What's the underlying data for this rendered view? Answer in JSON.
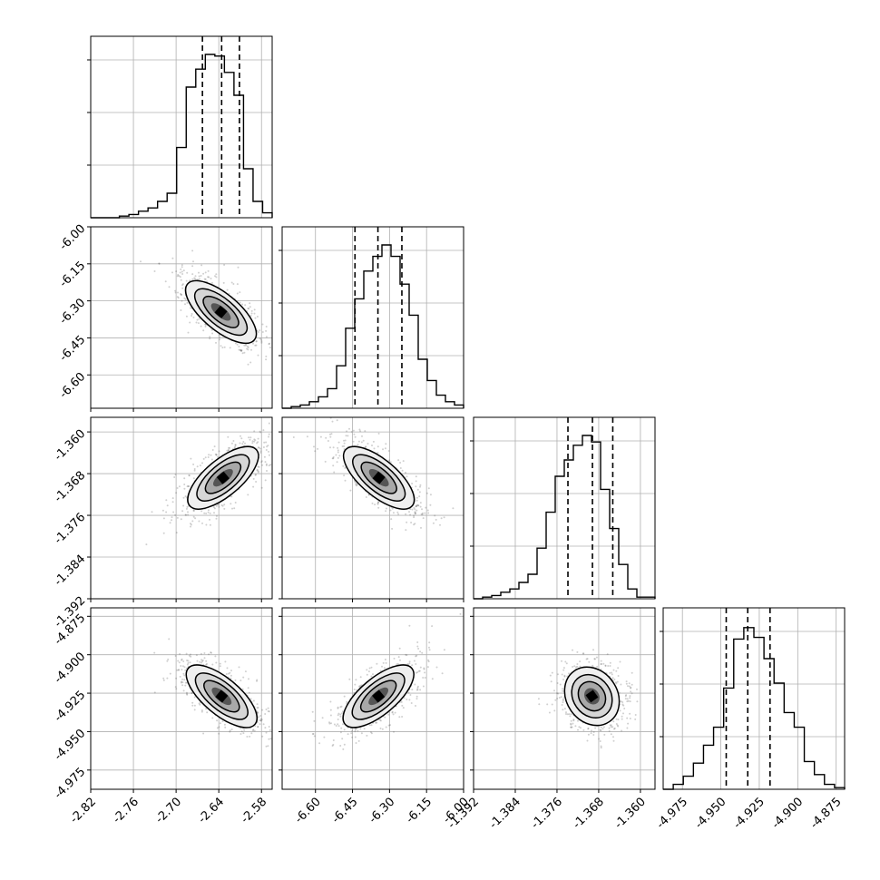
{
  "colors": {
    "ink": "#000000",
    "grid": "#b0b0b0",
    "background": "#ffffff",
    "sample_points": "#555555"
  },
  "chart_data": {
    "type": "corner",
    "title": "",
    "grid": true,
    "histogram_style": "step",
    "parameters": [
      {
        "index": 0,
        "range": [
          -2.82,
          -2.565
        ],
        "ticks": [
          "-2.82",
          "-2.76",
          "-2.70",
          "-2.64",
          "-2.58"
        ],
        "tick_values": [
          -2.82,
          -2.76,
          -2.7,
          -2.64,
          -2.58
        ],
        "quantiles": [
          -2.663,
          -2.636,
          -2.611
        ],
        "histogram": [
          0,
          0,
          0,
          1,
          2,
          4,
          6,
          10,
          15,
          43,
          80,
          91,
          100,
          99,
          89,
          75,
          30,
          10,
          3
        ]
      },
      {
        "index": 1,
        "range": [
          -6.735,
          -6.0
        ],
        "ticks": [
          "-6.60",
          "-6.45",
          "-6.30",
          "-6.15",
          "-6.00"
        ],
        "tick_values": [
          -6.6,
          -6.45,
          -6.3,
          -6.15,
          -6.0
        ],
        "quantiles": [
          -6.44,
          -6.347,
          -6.25
        ],
        "histogram": [
          0,
          1,
          2,
          4,
          7,
          12,
          26,
          49,
          67,
          84,
          93,
          100,
          93,
          76,
          57,
          30,
          17,
          8,
          4,
          2
        ]
      },
      {
        "index": 2,
        "range": [
          -1.392,
          -1.3572
        ],
        "ticks": [
          "-1.392",
          "-1.384",
          "-1.376",
          "-1.368",
          "-1.360"
        ],
        "tick_values": [
          -1.392,
          -1.384,
          -1.376,
          -1.368,
          -1.36
        ],
        "quantiles": [
          -1.3739,
          -1.3692,
          -1.3653
        ],
        "histogram": [
          0,
          1,
          2,
          4,
          6,
          10,
          15,
          31,
          53,
          75,
          85,
          94,
          100,
          96,
          67,
          43,
          21,
          6,
          1,
          1
        ]
      },
      {
        "index": 3,
        "range": [
          -4.9875,
          -4.8695
        ],
        "ticks": [
          "-4.975",
          "-4.950",
          "-4.925",
          "-4.900",
          "-4.875"
        ],
        "tick_values": [
          -4.975,
          -4.95,
          -4.925,
          -4.9,
          -4.875
        ],
        "quantiles": [
          -4.9465,
          -4.9325,
          -4.918
        ],
        "histogram": [
          0,
          3,
          8,
          16,
          27,
          38,
          62,
          92,
          99,
          93,
          80,
          65,
          47,
          38,
          17,
          9,
          3,
          1
        ]
      }
    ],
    "pairs": [
      {
        "x": 0,
        "y": 1,
        "center": [
          -2.637,
          -6.345
        ],
        "orientation": "negative"
      },
      {
        "x": 0,
        "y": 2,
        "center": [
          -2.634,
          -1.3688
        ],
        "orientation": "positive"
      },
      {
        "x": 1,
        "y": 2,
        "center": [
          -6.343,
          -1.3688
        ],
        "orientation": "negative"
      },
      {
        "x": 0,
        "y": 3,
        "center": [
          -2.636,
          -4.927
        ],
        "orientation": "negative"
      },
      {
        "x": 1,
        "y": 3,
        "center": [
          -6.345,
          -4.927
        ],
        "orientation": "positive"
      },
      {
        "x": 2,
        "y": 3,
        "center": [
          -1.3693,
          -4.927
        ],
        "orientation": "slight-negative"
      }
    ]
  }
}
